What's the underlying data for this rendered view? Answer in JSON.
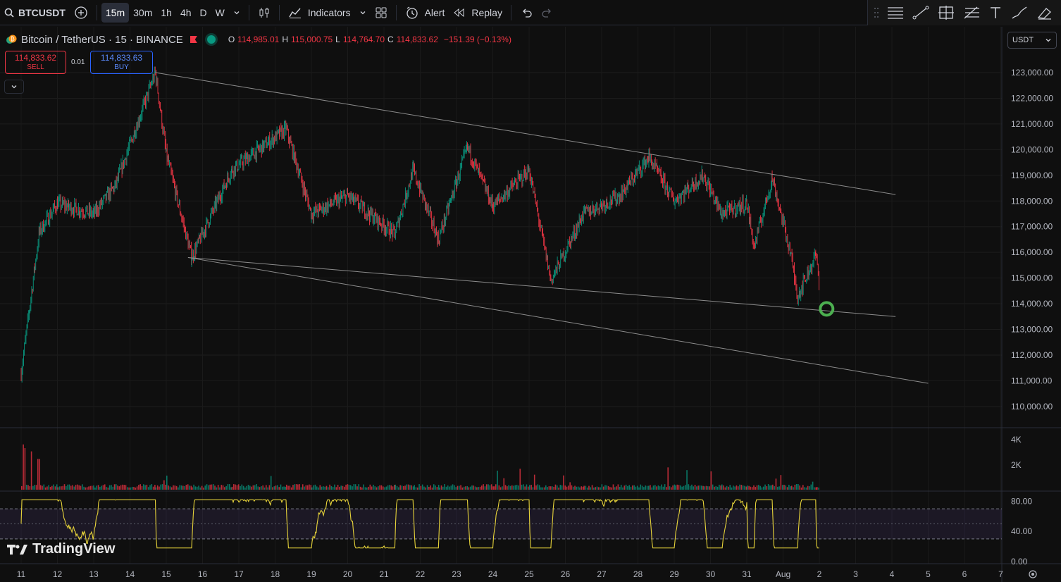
{
  "toolbar": {
    "symbol": "BTCUSDT",
    "intervals": [
      "15m",
      "30m",
      "1h",
      "4h",
      "D",
      "W"
    ],
    "active_interval": "15m",
    "indicators_label": "Indicators",
    "alert_label": "Alert",
    "replay_label": "Replay"
  },
  "legend": {
    "title": "Bitcoin / TetherUS · 15 · BINANCE",
    "open_key": "O",
    "open": "114,985.01",
    "high_key": "H",
    "high": "115,000.75",
    "low_key": "L",
    "low": "114,764.70",
    "close_key": "C",
    "close": "114,833.62",
    "change": "−151.39 (−0.13%)"
  },
  "trade": {
    "sell_price": "114,833.62",
    "sell_label": "SELL",
    "quantity": "0.01",
    "buy_price": "114,833.63",
    "buy_label": "BUY"
  },
  "currency": "USDT",
  "logo_text": "TradingView",
  "colors": {
    "up": "#089981",
    "down": "#f23645",
    "rsi": "#e6d33a",
    "trendline": "#8c8c8c",
    "marker": "#4caf50"
  },
  "chart_data": {
    "type": "candlestick",
    "price_axis": [
      "123,000.00",
      "122,000.00",
      "121,000.00",
      "120,000.00",
      "119,000.00",
      "118,000.00",
      "117,000.00",
      "116,000.00",
      "115,000.00",
      "114,000.00",
      "113,000.00",
      "112,000.00",
      "111,000.00",
      "110,000.00"
    ],
    "volume_axis": [
      "4K",
      "2K"
    ],
    "rsi_axis": [
      "80.00",
      "40.00",
      "0.00"
    ],
    "time_axis": [
      "11",
      "12",
      "13",
      "14",
      "15",
      "16",
      "17",
      "18",
      "19",
      "20",
      "21",
      "22",
      "23",
      "24",
      "25",
      "26",
      "27",
      "28",
      "29",
      "30",
      "31",
      "Aug",
      "2",
      "3",
      "4",
      "5",
      "6",
      "7"
    ],
    "approx_close_path": [
      {
        "t": "11",
        "price": 111300
      },
      {
        "t": "11.5",
        "price": 116800
      },
      {
        "t": "12",
        "price": 117900
      },
      {
        "t": "13",
        "price": 117500
      },
      {
        "t": "13.6",
        "price": 118600
      },
      {
        "t": "14.7",
        "price": 123000
      },
      {
        "t": "15",
        "price": 119800
      },
      {
        "t": "15.7",
        "price": 115800
      },
      {
        "t": "16.8",
        "price": 119200
      },
      {
        "t": "18.3",
        "price": 120800
      },
      {
        "t": "19",
        "price": 117500
      },
      {
        "t": "20",
        "price": 118200
      },
      {
        "t": "21.3",
        "price": 116700
      },
      {
        "t": "21.8",
        "price": 119200
      },
      {
        "t": "22.5",
        "price": 116500
      },
      {
        "t": "23.3",
        "price": 120100
      },
      {
        "t": "24",
        "price": 117800
      },
      {
        "t": "25",
        "price": 119200
      },
      {
        "t": "25.6",
        "price": 114900
      },
      {
        "t": "26.5",
        "price": 117500
      },
      {
        "t": "27.5",
        "price": 118200
      },
      {
        "t": "28.3",
        "price": 119700
      },
      {
        "t": "29",
        "price": 118000
      },
      {
        "t": "29.8",
        "price": 119000
      },
      {
        "t": "30.3",
        "price": 117500
      },
      {
        "t": "31",
        "price": 117900
      },
      {
        "t": "31.2",
        "price": 116200
      },
      {
        "t": "31.7",
        "price": 118900
      },
      {
        "t": "32.2",
        "price": 116000
      },
      {
        "t": "32.4",
        "price": 114300
      },
      {
        "t": "32.9",
        "price": 115900
      },
      {
        "t": "33",
        "price": 114833
      }
    ],
    "trendlines": [
      {
        "from": {
          "t": "14.7",
          "price": 123000
        },
        "to": {
          "t": "35.1",
          "price": 118250
        }
      },
      {
        "from": {
          "t": "15.6",
          "price": 115800
        },
        "to": {
          "t": "35.1",
          "price": 113500
        }
      },
      {
        "from": {
          "t": "15.6",
          "price": 115800
        },
        "to": {
          "t": "36",
          "price": 110900
        }
      }
    ],
    "marker": {
      "t": "33.2",
      "price": 113800
    },
    "rsi_band": [
      30,
      70
    ]
  }
}
